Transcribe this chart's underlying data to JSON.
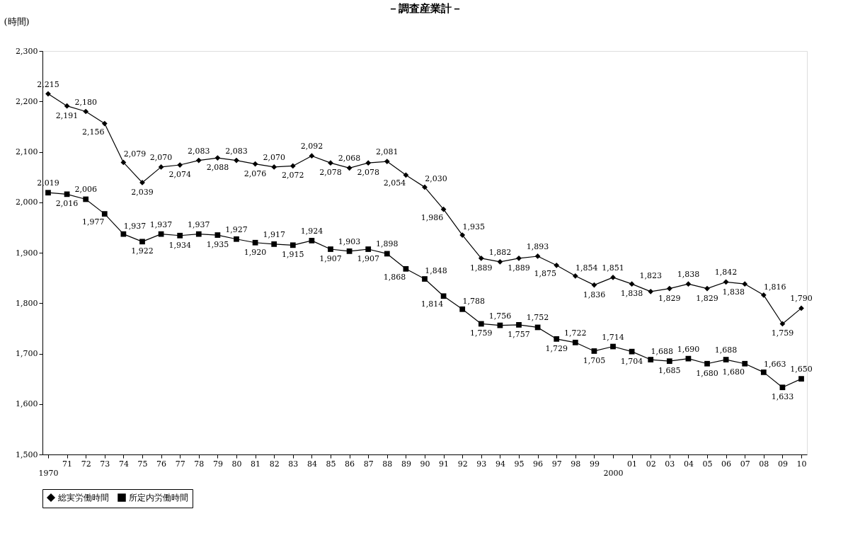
{
  "chart_data": {
    "type": "line",
    "title": "－調査産業計－",
    "ylabel": "(時間)",
    "categories": [
      "1970",
      "71",
      "72",
      "73",
      "74",
      "75",
      "76",
      "77",
      "78",
      "79",
      "80",
      "81",
      "82",
      "83",
      "84",
      "85",
      "86",
      "87",
      "88",
      "89",
      "90",
      "91",
      "92",
      "93",
      "94",
      "95",
      "96",
      "97",
      "98",
      "99",
      "2000",
      "01",
      "02",
      "03",
      "04",
      "05",
      "06",
      "07",
      "08",
      "09",
      "10"
    ],
    "series": [
      {
        "name": "総実労働時間",
        "color": "#000000",
        "marker": "diamond",
        "values": [
          2215,
          2191,
          2180,
          2156,
          2079,
          2039,
          2070,
          2074,
          2083,
          2088,
          2083,
          2076,
          2070,
          2072,
          2092,
          2078,
          2068,
          2078,
          2081,
          2054,
          2030,
          1986,
          1935,
          1889,
          1882,
          1889,
          1893,
          1875,
          1854,
          1836,
          1851,
          1838,
          1823,
          1829,
          1838,
          1829,
          1842,
          1838,
          1816,
          1759,
          1790
        ],
        "value_labels": [
          "2,215",
          "2,191",
          "2,180",
          "2,156",
          "2,079",
          "2,039",
          "2,070",
          "2,074",
          "2,083",
          "2,088",
          "2,083",
          "2,076",
          "2,070",
          "2,072",
          "2,092",
          "2,078",
          "2,068",
          "2,078",
          "2,081",
          "2,054",
          "2,030",
          "1,986",
          "1,935",
          "1,889",
          "1,882",
          "1,889",
          "1,893",
          "1,875",
          "1,854",
          "1,836",
          "1,851",
          "1,838",
          "1,823",
          "1,829",
          "1,838",
          "1,829",
          "1,842",
          "1,838",
          "1,816",
          "1,759",
          "1,790"
        ]
      },
      {
        "name": "所定内労働時間",
        "color": "#000000",
        "marker": "square",
        "values": [
          2019,
          2016,
          2006,
          1977,
          1937,
          1922,
          1937,
          1934,
          1937,
          1935,
          1927,
          1920,
          1917,
          1915,
          1924,
          1907,
          1903,
          1907,
          1898,
          1868,
          1848,
          1814,
          1788,
          1759,
          1756,
          1757,
          1752,
          1729,
          1722,
          1705,
          1714,
          1704,
          1688,
          1685,
          1690,
          1680,
          1688,
          1680,
          1663,
          1633,
          1650
        ],
        "value_labels": [
          "2,019",
          "2,016",
          "2,006",
          "1,977",
          "1,937",
          "1,922",
          "1,937",
          "1,934",
          "1,937",
          "1,935",
          "1,927",
          "1,920",
          "1,917",
          "1,915",
          "1,924",
          "1,907",
          "1,903",
          "1,907",
          "1,898",
          "1,868",
          "1,848",
          "1,814",
          "1,788",
          "1,759",
          "1,756",
          "1,757",
          "1,752",
          "1,729",
          "1,722",
          "1,705",
          "1,714",
          "1,704",
          "1,688",
          "1,685",
          "1,690",
          "1,680",
          "1,688",
          "1,680",
          "1,663",
          "1,633",
          "1,650"
        ]
      }
    ],
    "ylim": [
      1500,
      2300
    ],
    "yticks": [
      {
        "value": 1500,
        "label": "1,500"
      },
      {
        "value": 1600,
        "label": "1,600"
      },
      {
        "value": 1700,
        "label": "1,700"
      },
      {
        "value": 1800,
        "label": "1,800"
      },
      {
        "value": 1900,
        "label": "1,900"
      },
      {
        "value": 2000,
        "label": "2,000"
      },
      {
        "value": 2100,
        "label": "2,100"
      },
      {
        "value": 2200,
        "label": "2,200"
      },
      {
        "value": 2300,
        "label": "2,300"
      }
    ],
    "data_labels": true,
    "grid": false,
    "legend": "bottom"
  }
}
